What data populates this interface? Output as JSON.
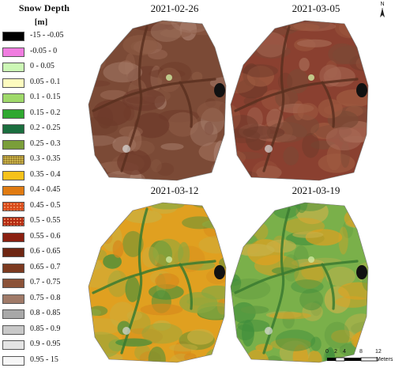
{
  "legend": {
    "title": "Snow Depth",
    "unit": "[m]",
    "classes": [
      {
        "label": "-15 - -0.05",
        "color": "#000000"
      },
      {
        "label": "-0.05 - 0",
        "color": "#f07ce0"
      },
      {
        "label": "0 - 0.05",
        "color": "#ccf7b5"
      },
      {
        "label": "0.05 - 0.1",
        "color": "#fdfbbf"
      },
      {
        "label": "0.1 - 0.15",
        "color": "#9fd96a"
      },
      {
        "label": "0.15 - 0.2",
        "color": "#2fa830"
      },
      {
        "label": "0.2 - 0.25",
        "color": "#1a6e3e"
      },
      {
        "label": "0.25 - 0.3",
        "color": "#7a9e3a"
      },
      {
        "label": "0.3 - 0.35",
        "color": "#c8b24a"
      },
      {
        "label": "0.35 - 0.4",
        "color": "#f6c21a"
      },
      {
        "label": "0.4 - 0.45",
        "color": "#e07b12"
      },
      {
        "label": "0.45 - 0.5",
        "color": "#d84a1a"
      },
      {
        "label": "0.5 - 0.55",
        "color": "#b32a12"
      },
      {
        "label": "0.55 - 0.6",
        "color": "#8a1f10"
      },
      {
        "label": "0.6 - 0.65",
        "color": "#6e2612"
      },
      {
        "label": "0.65 - 0.7",
        "color": "#7c3a20"
      },
      {
        "label": "0.7 - 0.75",
        "color": "#8b5238"
      },
      {
        "label": "0.75 - 0.8",
        "color": "#a07a68"
      },
      {
        "label": "0.8 - 0.85",
        "color": "#a8a8a8"
      },
      {
        "label": "0.85 - 0.9",
        "color": "#c8c8c8"
      },
      {
        "label": "0.9 - 0.95",
        "color": "#e4e4e4"
      },
      {
        "label": "0.95 - 15",
        "color": "#f6f6f6"
      }
    ]
  },
  "panels": [
    {
      "date": "2021-02-26",
      "palette": [
        "#7b4a36",
        "#8c5a44",
        "#6e3a2a",
        "#9b6a55",
        "#a77d6b"
      ]
    },
    {
      "date": "2021-03-05",
      "palette": [
        "#8a4030",
        "#7b4a36",
        "#9e5a40",
        "#6e3a2a",
        "#a76a55"
      ]
    },
    {
      "date": "2021-03-12",
      "palette": [
        "#e0a020",
        "#d78a1c",
        "#c9b040",
        "#8aa840",
        "#3f8e3c"
      ]
    },
    {
      "date": "2021-03-19",
      "palette": [
        "#7ab04a",
        "#5e9a40",
        "#c8b24a",
        "#e0a020",
        "#3f8e3c"
      ]
    }
  ],
  "north_arrow": {
    "label": "N"
  },
  "scale_bar": {
    "ticks": [
      "0",
      "2",
      "4",
      "8",
      "12"
    ],
    "unit": "Meters"
  }
}
